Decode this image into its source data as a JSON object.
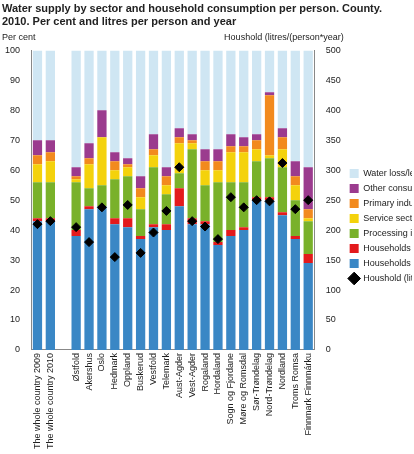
{
  "chart_data": {
    "type": "bar",
    "title": "Water supply by sector and household consumption per person. County. 2010. Per cent and litres per person and year",
    "ylabel": "Per cent",
    "y2label": "Houshold (litres/(person*year)",
    "stacked": true,
    "grid": false,
    "legend": "right",
    "categories": [
      "The whole country 2009",
      "The whole country 2010",
      null,
      "Østfold",
      "Akershus",
      "Oslo",
      "Hedmark",
      "Oppland",
      "Buskerud",
      "Vestfold",
      "Telemark",
      "Aust-Agder",
      "Vest-Agder",
      "Rogaland",
      "Hordaland",
      "Sogn og Fjordane",
      "Møre og Romsdal",
      "Sør-Trøndelag",
      "Nord-Trøndelag",
      "Nordland",
      "Troms Romsa",
      "Finnmark Finnmárku"
    ],
    "series": [
      {
        "name": "Households - house/apartement",
        "color": "#3a87c5",
        "values": [
          43,
          43,
          null,
          38,
          47,
          48,
          42,
          41,
          37,
          41,
          40,
          48,
          42,
          42,
          35,
          38,
          40,
          50,
          50,
          45,
          37,
          29
        ]
      },
      {
        "name": "Households - holiday cabins etc.",
        "color": "#e31a1c",
        "values": [
          1,
          1,
          null,
          2,
          1,
          0,
          2,
          3,
          1,
          1,
          2,
          6,
          2,
          1,
          1,
          2,
          1,
          1,
          1,
          1,
          1,
          3
        ]
      },
      {
        "name": "Processing industry",
        "color": "#79b12a",
        "values": [
          12,
          12,
          null,
          16,
          6,
          7,
          13,
          14,
          9,
          19,
          10,
          5,
          23,
          12,
          20,
          16,
          15,
          12,
          13,
          15,
          12,
          11
        ]
      },
      {
        "name": "Service sector",
        "color": "#f4d20c",
        "values": [
          6,
          7,
          null,
          1,
          8,
          16,
          3,
          3,
          4,
          4,
          3,
          10,
          2,
          5,
          4,
          10,
          10,
          4,
          1,
          6,
          5,
          1
        ]
      },
      {
        "name": "Primary industries",
        "color": "#f28a1e",
        "values": [
          3,
          3,
          null,
          1,
          2,
          0,
          3,
          1,
          3,
          2,
          3,
          2,
          1,
          3,
          3,
          2,
          2,
          3,
          20,
          4,
          3,
          3
        ]
      },
      {
        "name": "Other consumption",
        "color": "#9b3b8e",
        "values": [
          5,
          4,
          null,
          3,
          5,
          9,
          3,
          2,
          4,
          5,
          3,
          3,
          2,
          4,
          4,
          4,
          3,
          2,
          1,
          3,
          5,
          14
        ]
      },
      {
        "name": "Water loss/leakage",
        "color": "#cfe6f3",
        "values": [
          30,
          30,
          null,
          39,
          31,
          20,
          34,
          36,
          42,
          28,
          39,
          26,
          28,
          33,
          33,
          28,
          29,
          28,
          14,
          26,
          37,
          39
        ]
      },
      {
        "name": "Houshold (litres/(person*year)",
        "color": "#000000",
        "type": "line",
        "line_style": "none",
        "marker": "diamond",
        "axis": "y2",
        "values": [
          210,
          215,
          null,
          205,
          180,
          238,
          155,
          242,
          162,
          196,
          232,
          305,
          215,
          206,
          185,
          255,
          238,
          250,
          248,
          312,
          235,
          250
        ]
      }
    ],
    "ylim": [
      0,
      100
    ],
    "yticks": [
      0,
      10,
      20,
      30,
      40,
      50,
      60,
      70,
      80,
      90,
      100
    ],
    "y2lim": [
      0,
      500
    ],
    "y2ticks": [
      0,
      50,
      100,
      150,
      200,
      250,
      300,
      350,
      400,
      450,
      500
    ]
  }
}
